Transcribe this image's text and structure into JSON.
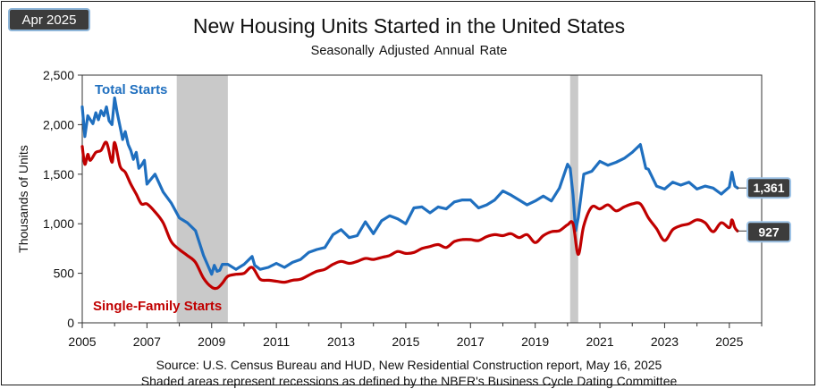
{
  "badge": "Apr 2025",
  "chart_data": {
    "type": "line",
    "title": "New Housing Units Started in the United States",
    "subtitle": "Seasonally Adjusted  Annual Rate",
    "ylabel": "Thousands of Units",
    "xlabel": "",
    "xlim": [
      2005,
      2026.0
    ],
    "ylim": [
      0,
      2500
    ],
    "xticks": [
      "2005",
      "2007",
      "2009",
      "2011",
      "2013",
      "2015",
      "2017",
      "2019",
      "2021",
      "2023",
      "2025"
    ],
    "yticks": [
      "0",
      "500",
      "1,000",
      "1,500",
      "2,000",
      "2,500"
    ],
    "recessions": [
      [
        2007.92,
        2009.5
      ],
      [
        2020.08,
        2020.33
      ]
    ],
    "series": [
      {
        "name": "Total Starts",
        "color": "#1f6fbf",
        "end_label": "1,361",
        "x": [
          2005.0,
          2005.08,
          2005.17,
          2005.25,
          2005.33,
          2005.42,
          2005.5,
          2005.58,
          2005.67,
          2005.75,
          2005.83,
          2005.92,
          2006.0,
          2006.08,
          2006.17,
          2006.25,
          2006.33,
          2006.42,
          2006.5,
          2006.58,
          2006.67,
          2006.75,
          2006.83,
          2006.92,
          2007.0,
          2007.25,
          2007.5,
          2007.75,
          2008.0,
          2008.25,
          2008.5,
          2008.75,
          2009.0,
          2009.08,
          2009.17,
          2009.25,
          2009.33,
          2009.5,
          2009.75,
          2010.0,
          2010.25,
          2010.33,
          2010.5,
          2010.75,
          2011.0,
          2011.25,
          2011.5,
          2011.75,
          2012.0,
          2012.25,
          2012.5,
          2012.75,
          2013.0,
          2013.25,
          2013.5,
          2013.75,
          2014.0,
          2014.25,
          2014.5,
          2014.75,
          2015.0,
          2015.25,
          2015.5,
          2015.75,
          2016.0,
          2016.25,
          2016.5,
          2016.75,
          2017.0,
          2017.25,
          2017.5,
          2017.75,
          2018.0,
          2018.25,
          2018.5,
          2018.75,
          2019.0,
          2019.25,
          2019.5,
          2019.75,
          2020.0,
          2020.08,
          2020.17,
          2020.25,
          2020.33,
          2020.5,
          2020.75,
          2021.0,
          2021.25,
          2021.5,
          2021.75,
          2022.0,
          2022.25,
          2022.42,
          2022.5,
          2022.75,
          2023.0,
          2023.25,
          2023.5,
          2023.75,
          2024.0,
          2024.25,
          2024.5,
          2024.75,
          2025.0,
          2025.08,
          2025.17,
          2025.25
        ],
        "y": [
          2180,
          1880,
          2090,
          2050,
          2010,
          2120,
          2050,
          2140,
          2090,
          2180,
          2040,
          2000,
          2270,
          2120,
          1980,
          1850,
          1930,
          1800,
          1740,
          1650,
          1720,
          1560,
          1590,
          1640,
          1400,
          1500,
          1320,
          1210,
          1060,
          1010,
          930,
          680,
          490,
          580,
          520,
          530,
          590,
          590,
          540,
          590,
          670,
          580,
          540,
          560,
          600,
          560,
          610,
          640,
          710,
          740,
          760,
          890,
          940,
          860,
          880,
          1020,
          900,
          1030,
          1080,
          1050,
          1000,
          1160,
          1170,
          1110,
          1170,
          1150,
          1220,
          1240,
          1240,
          1160,
          1190,
          1240,
          1330,
          1290,
          1240,
          1190,
          1230,
          1280,
          1230,
          1360,
          1600,
          1560,
          1290,
          930,
          1060,
          1500,
          1530,
          1630,
          1590,
          1620,
          1660,
          1720,
          1800,
          1560,
          1550,
          1380,
          1350,
          1420,
          1390,
          1420,
          1350,
          1380,
          1360,
          1300,
          1370,
          1520,
          1380,
          1361
        ],
        "smooth": false
      },
      {
        "name": "Single-Family Starts",
        "color": "#c00000",
        "end_label": "927",
        "x": [
          2005.0,
          2005.08,
          2005.17,
          2005.25,
          2005.42,
          2005.58,
          2005.75,
          2005.92,
          2006.0,
          2006.17,
          2006.33,
          2006.5,
          2006.67,
          2006.83,
          2007.0,
          2007.25,
          2007.5,
          2007.75,
          2008.0,
          2008.25,
          2008.5,
          2008.75,
          2009.0,
          2009.17,
          2009.33,
          2009.5,
          2009.75,
          2010.0,
          2010.25,
          2010.5,
          2010.75,
          2011.0,
          2011.25,
          2011.5,
          2011.75,
          2012.0,
          2012.25,
          2012.5,
          2012.75,
          2013.0,
          2013.25,
          2013.5,
          2013.75,
          2014.0,
          2014.25,
          2014.5,
          2014.75,
          2015.0,
          2015.25,
          2015.5,
          2015.75,
          2016.0,
          2016.25,
          2016.5,
          2016.75,
          2017.0,
          2017.25,
          2017.5,
          2017.75,
          2018.0,
          2018.25,
          2018.5,
          2018.75,
          2019.0,
          2019.25,
          2019.5,
          2019.75,
          2020.0,
          2020.17,
          2020.33,
          2020.5,
          2020.75,
          2021.0,
          2021.25,
          2021.5,
          2021.75,
          2022.0,
          2022.25,
          2022.5,
          2022.75,
          2023.0,
          2023.25,
          2023.5,
          2023.75,
          2024.0,
          2024.25,
          2024.5,
          2024.75,
          2025.0,
          2025.08,
          2025.17,
          2025.25
        ],
        "y": [
          1780,
          1600,
          1700,
          1640,
          1720,
          1740,
          1820,
          1620,
          1820,
          1580,
          1520,
          1400,
          1300,
          1200,
          1200,
          1120,
          1010,
          820,
          740,
          680,
          610,
          450,
          360,
          350,
          400,
          470,
          490,
          500,
          560,
          440,
          430,
          420,
          410,
          430,
          440,
          480,
          520,
          540,
          590,
          620,
          600,
          620,
          650,
          640,
          660,
          680,
          720,
          700,
          710,
          750,
          770,
          790,
          760,
          820,
          840,
          840,
          830,
          870,
          890,
          880,
          900,
          860,
          890,
          810,
          880,
          920,
          930,
          990,
          1000,
          690,
          980,
          1170,
          1150,
          1190,
          1130,
          1170,
          1200,
          1200,
          1060,
          950,
          830,
          940,
          980,
          1000,
          1040,
          1010,
          920,
          1010,
          960,
          1040,
          960,
          927
        ],
        "smooth": true
      }
    ],
    "annotations": [
      "Total Starts",
      "Single-Family Starts"
    ]
  },
  "source": {
    "line1": "Source:  U.S. Census Bureau and HUD, New Residential Construction report, May 16, 2025",
    "line2": "Shaded areas represent recessions as defined by the NBER's Business Cycle Dating Committee"
  }
}
